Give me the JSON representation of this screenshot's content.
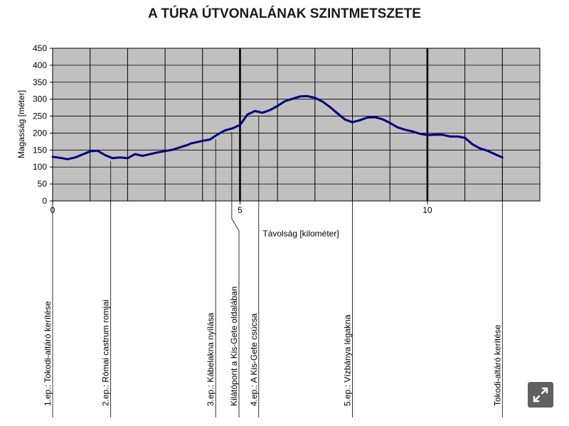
{
  "chart_data": {
    "type": "line",
    "title": "A TÚRA ÚTVONALÁNAK SZINTMETSZETE",
    "xlabel": "Távolság [kilométer]",
    "ylabel": "Magasság [méter]",
    "xlim": [
      0,
      13.0
    ],
    "ylim": [
      0,
      450
    ],
    "x_ticks": [
      0,
      5,
      10
    ],
    "y_ticks": [
      0,
      50,
      100,
      150,
      200,
      250,
      300,
      350,
      400,
      450
    ],
    "grid": true,
    "plot_background": "#c0c0c0",
    "line_color": "#00007f",
    "series": [
      {
        "x": [
          0,
          0.2,
          0.4,
          0.6,
          0.8,
          1.0,
          1.2,
          1.4,
          1.6,
          1.8,
          2.0,
          2.2,
          2.4,
          2.6,
          2.8,
          3.0,
          3.2,
          3.4,
          3.6,
          3.7,
          3.8,
          4.0,
          4.2,
          4.4,
          4.6,
          4.8,
          5.0,
          5.2,
          5.4,
          5.6,
          5.8,
          6.0,
          6.2,
          6.4,
          6.6,
          6.8,
          7.0,
          7.2,
          7.4,
          7.6,
          7.8,
          8.0,
          8.2,
          8.4,
          8.6,
          8.8,
          9.0,
          9.2,
          9.4,
          9.6,
          9.8,
          10.0,
          10.2,
          10.4,
          10.6,
          10.8,
          11.0,
          11.2,
          11.4,
          11.6,
          11.8,
          12.0
        ],
        "y": [
          130,
          127,
          123,
          128,
          137,
          146,
          148,
          135,
          126,
          128,
          126,
          138,
          133,
          138,
          143,
          147,
          151,
          158,
          165,
          170,
          172,
          177,
          181,
          196,
          208,
          214,
          224,
          255,
          265,
          260,
          268,
          280,
          294,
          301,
          308,
          309,
          304,
          293,
          277,
          258,
          240,
          232,
          238,
          246,
          247,
          241,
          230,
          217,
          210,
          205,
          198,
          194,
          195,
          195,
          190,
          190,
          186,
          167,
          155,
          148,
          138,
          128
        ]
      }
    ],
    "stations": [
      {
        "label": "1.ep.: Tokodi-altáró kerítése",
        "x": 0.0
      },
      {
        "label": "2.ep.: Római castrum romjai",
        "x": 1.55
      },
      {
        "label": "3.ep.: Kábelakna nyílása",
        "x": 4.35
      },
      {
        "label": "Kilátópont a Kis-Gete oldalában",
        "x": 4.78
      },
      {
        "label": "4.ep.: A Kis-Gete csúcsa",
        "x": 5.5
      },
      {
        "label": "5.ep.: Vízbánya légakna",
        "x": 8.0
      },
      {
        "label": "Tokodi-altáró kerítése",
        "x": 12.0
      }
    ]
  },
  "ui": {
    "expand_icon": "expand-icon"
  }
}
